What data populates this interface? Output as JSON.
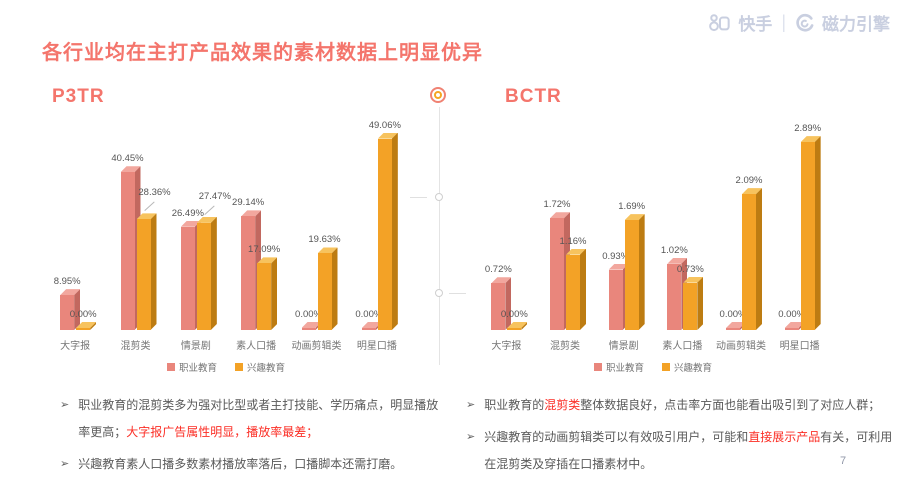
{
  "brand": {
    "kuaishou_label": "快手",
    "divider": "|",
    "engine_label": "磁力引擎"
  },
  "title": "各行业均在主打产品效果的素材数据上明显优异",
  "page_number": "7",
  "colors": {
    "accent_coral": "#F4756C",
    "note_red": "#FB2E25",
    "bar_pink": "#E9867C",
    "bar_pink_side": "#C2685F",
    "bar_pink_top": "#F2A79E",
    "bar_yellow": "#F3A226",
    "bar_yellow_side": "#BD7C12",
    "bar_yellow_top": "#F7C35E",
    "body_text": "#595959",
    "axis_text": "#757575",
    "logo_grey": "#C9CFE0"
  },
  "chart_data": [
    {
      "type": "bar",
      "title": "P3TR",
      "unit": "%",
      "categories": [
        "大字报",
        "混剪类",
        "情景剧",
        "素人口播",
        "动画剪辑类",
        "明星口播"
      ],
      "series": [
        {
          "name": "职业教育",
          "values": [
            8.95,
            40.45,
            26.49,
            29.14,
            0.0,
            0.0
          ]
        },
        {
          "name": "兴趣教育",
          "values": [
            0.0,
            28.36,
            27.47,
            17.09,
            19.63,
            49.06
          ]
        }
      ],
      "ylim": [
        0,
        50
      ],
      "grid": false,
      "legend_position": "bottom"
    },
    {
      "type": "bar",
      "title": "BCTR",
      "unit": "%",
      "categories": [
        "大字报",
        "混剪类",
        "情景剧",
        "素人口播",
        "动画剪辑类",
        "明星口播"
      ],
      "series": [
        {
          "name": "职业教育",
          "values": [
            0.72,
            1.72,
            0.93,
            1.02,
            0.0,
            0.0
          ]
        },
        {
          "name": "兴趣教育",
          "values": [
            0.0,
            1.16,
            1.69,
            0.73,
            2.09,
            2.89
          ]
        }
      ],
      "ylim": [
        0,
        3
      ],
      "grid": false,
      "legend_position": "bottom"
    }
  ],
  "notes": {
    "left": [
      {
        "segments": [
          {
            "text": "职业教育的混剪类多为强对比型或者主打技能、学历痛点，明显播放率更高；",
            "red": false
          },
          {
            "text": "大字报广告属性明显，播放率最差；",
            "red": true
          }
        ]
      },
      {
        "segments": [
          {
            "text": "兴趣教育素人口播多数素材播放率落后，口播脚本还需打磨。",
            "red": false
          }
        ]
      }
    ],
    "right": [
      {
        "segments": [
          {
            "text": "职业教育的",
            "red": false
          },
          {
            "text": "混剪类",
            "red": true
          },
          {
            "text": "整体数据良好，点击率方面也能看出吸引到了对应人群；",
            "red": false
          }
        ]
      },
      {
        "segments": [
          {
            "text": "兴趣教育的动画剪辑类可以有效吸引用户，可能和",
            "red": false
          },
          {
            "text": "直接展示产品",
            "red": true
          },
          {
            "text": "有关，可利用在混剪类及穿插在口播素材中。",
            "red": false
          }
        ]
      }
    ]
  }
}
